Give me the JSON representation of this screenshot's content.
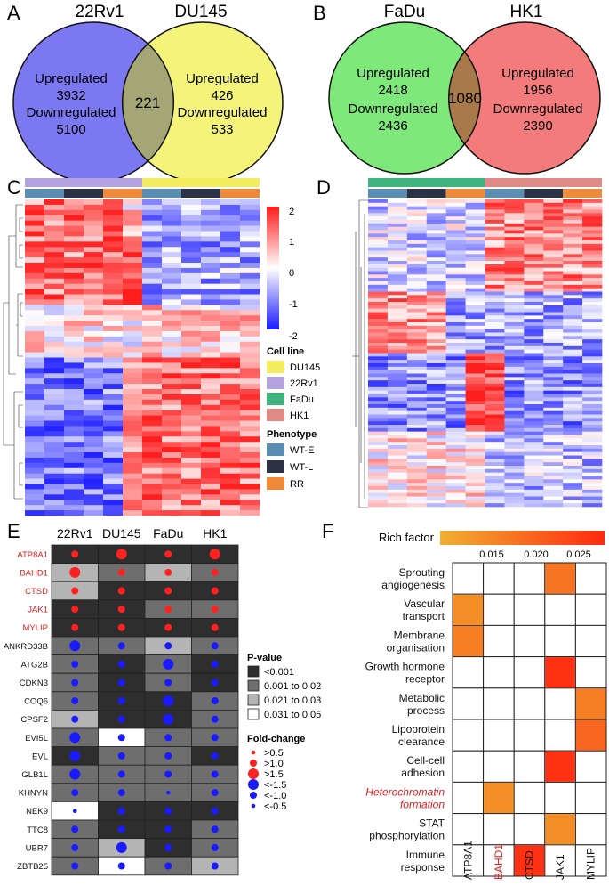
{
  "panels": {
    "A": "A",
    "B": "B",
    "C": "C",
    "D": "D",
    "E": "E",
    "F": "F"
  },
  "venn_a": {
    "left_title": "22Rv1",
    "right_title": "DU145",
    "left": {
      "up_label": "Upregulated",
      "up": "3932",
      "down_label": "Downregulated",
      "down": "5100"
    },
    "overlap": "221",
    "right": {
      "up_label": "Upregulated",
      "up": "426",
      "down_label": "Downregulated",
      "down": "533"
    },
    "left_color": "#7b78f2",
    "right_color": "#f4f47a",
    "overlap_color": "#a4a775"
  },
  "venn_b": {
    "left_title": "FaDu",
    "right_title": "HK1",
    "left": {
      "up_label": "Upregulated",
      "up": "2418",
      "down_label": "Downregulated",
      "down": "2436"
    },
    "overlap": "1080",
    "right": {
      "up_label": "Upregulated",
      "up": "1956",
      "down_label": "Downregulated",
      "down": "2390"
    },
    "left_color": "#7ee87a",
    "right_color": "#f37b7b",
    "overlap_color": "#a87a4a"
  },
  "heatmap_legend": {
    "scale_ticks": [
      "2",
      "1",
      "0",
      "-1",
      "-2"
    ],
    "cell_line_title": "Cell line",
    "cell_lines": [
      {
        "label": "DU145",
        "color": "#f2ec5e"
      },
      {
        "label": "22Rv1",
        "color": "#b4a3e0"
      },
      {
        "label": "FaDu",
        "color": "#3fb47f"
      },
      {
        "label": "HK1",
        "color": "#e08a85"
      }
    ],
    "phenotype_title": "Phenotype",
    "phenotypes": [
      {
        "label": "WT-E",
        "color": "#5b8db3"
      },
      {
        "label": "WT-L",
        "color": "#2b3246"
      },
      {
        "label": "RR",
        "color": "#ee8a3a"
      }
    ]
  },
  "bubble": {
    "columns": [
      "22Rv1",
      "DU145",
      "FaDu",
      "HK1"
    ],
    "rows": [
      {
        "gene": "ATP8A1",
        "highlight": true
      },
      {
        "gene": "BAHD1",
        "highlight": true
      },
      {
        "gene": "CTSD",
        "highlight": true
      },
      {
        "gene": "JAK1",
        "highlight": true
      },
      {
        "gene": "MYLIP",
        "highlight": true
      },
      {
        "gene": "ANKRD33B",
        "highlight": false
      },
      {
        "gene": "ATG2B",
        "highlight": false
      },
      {
        "gene": "CDKN3",
        "highlight": false
      },
      {
        "gene": "COQ6",
        "highlight": false
      },
      {
        "gene": "CPSF2",
        "highlight": false
      },
      {
        "gene": "EVI5L",
        "highlight": false
      },
      {
        "gene": "EVL",
        "highlight": false
      },
      {
        "gene": "GLB1L",
        "highlight": false
      },
      {
        "gene": "KHNYN",
        "highlight": false
      },
      {
        "gene": "NEK9",
        "highlight": false
      },
      {
        "gene": "TTC8",
        "highlight": false
      },
      {
        "gene": "UBR7",
        "highlight": false
      },
      {
        "gene": "ZBTB25",
        "highlight": false
      }
    ],
    "pvalue_levels": [
      4,
      4,
      4,
      4,
      2,
      3,
      2,
      3,
      2,
      4,
      4,
      4,
      4,
      4,
      3,
      3,
      4,
      4,
      4,
      4,
      3,
      3,
      2,
      3,
      3,
      4,
      3,
      4,
      3,
      4,
      3,
      4,
      3,
      4,
      4,
      3,
      2,
      4,
      4,
      3,
      3,
      1,
      3,
      3,
      4,
      3,
      3,
      4,
      3,
      3,
      3,
      3,
      3,
      3,
      3,
      3,
      1,
      4,
      4,
      4,
      3,
      4,
      4,
      3,
      3,
      2,
      4,
      3,
      3,
      1,
      3,
      2
    ],
    "foldchange_levels": [
      2,
      3,
      2,
      3,
      3,
      2,
      2,
      2,
      2,
      2,
      2,
      2,
      2,
      2,
      2,
      2,
      2,
      2,
      2,
      2,
      -3,
      -2,
      -2,
      -2,
      -2,
      -2,
      -3,
      -2,
      -2,
      -2,
      -2,
      -2,
      -2,
      -2,
      -3,
      -2,
      -2,
      -2,
      -3,
      -2,
      -3,
      -2,
      -2,
      -2,
      -3,
      -2,
      -2,
      -2,
      -3,
      -2,
      -2,
      -2,
      -2,
      -2,
      -1,
      -2,
      -1,
      -2,
      -2,
      -2,
      -2,
      -2,
      -2,
      -2,
      -2,
      -3,
      -2,
      -2,
      -2,
      -2,
      -2,
      -2
    ],
    "pvalue_title": "P-value",
    "pvalue_legend": [
      {
        "label": "<0.001",
        "level": 4
      },
      {
        "label": "0.001 to 0.02",
        "level": 3
      },
      {
        "label": "0.021 to 0.03",
        "level": 2
      },
      {
        "label": "0.031 to 0.05",
        "level": 1
      }
    ],
    "fc_title": "Fold-change",
    "fc_legend": [
      {
        "label": ">0.5",
        "level": 1
      },
      {
        "label": ">1.0",
        "level": 2
      },
      {
        "label": ">1.5",
        "level": 3
      },
      {
        "label": "<-1.5",
        "level": -3
      },
      {
        "label": "<-1.0",
        "level": -2
      },
      {
        "label": "<-0.5",
        "level": -1
      }
    ]
  },
  "enrichment": {
    "legend_title": "Rich factor",
    "legend_ticks": [
      "0.015",
      "0.020",
      "0.025"
    ],
    "genes": [
      {
        "label": "ATP8A1",
        "highlight": false
      },
      {
        "label": "BAHD1",
        "highlight": true
      },
      {
        "label": "CTSD",
        "highlight": false
      },
      {
        "label": "JAK1",
        "highlight": false
      },
      {
        "label": "MYLIP",
        "highlight": false
      }
    ],
    "terms": [
      {
        "lines": [
          "Sprouting",
          "angiogenesis"
        ],
        "highlight": false
      },
      {
        "lines": [
          "Vascular",
          "transport"
        ],
        "highlight": false
      },
      {
        "lines": [
          "Membrane",
          "organisation"
        ],
        "highlight": false
      },
      {
        "lines": [
          "Growth hormone",
          "receptor"
        ],
        "highlight": false
      },
      {
        "lines": [
          "Metabolic",
          "process"
        ],
        "highlight": false
      },
      {
        "lines": [
          "Lipoprotein",
          "clearance"
        ],
        "highlight": false
      },
      {
        "lines": [
          "Cell-cell",
          "adhesion"
        ],
        "highlight": false
      },
      {
        "lines": [
          "Heterochromatin",
          "formation"
        ],
        "highlight": true
      },
      {
        "lines": [
          "STAT",
          "phosphorylation"
        ],
        "highlight": false
      },
      {
        "lines": [
          "Immune",
          "response"
        ],
        "highlight": false
      }
    ],
    "cells": [
      {
        "term": 0,
        "gene": 3,
        "rich": 0.019
      },
      {
        "term": 1,
        "gene": 0,
        "rich": 0.016
      },
      {
        "term": 2,
        "gene": 0,
        "rich": 0.018
      },
      {
        "term": 3,
        "gene": 3,
        "rich": 0.027
      },
      {
        "term": 4,
        "gene": 4,
        "rich": 0.018
      },
      {
        "term": 5,
        "gene": 4,
        "rich": 0.021
      },
      {
        "term": 6,
        "gene": 3,
        "rich": 0.027
      },
      {
        "term": 7,
        "gene": 1,
        "rich": 0.016
      },
      {
        "term": 8,
        "gene": 3,
        "rich": 0.016
      },
      {
        "term": 9,
        "gene": 2,
        "rich": 0.027
      }
    ]
  }
}
